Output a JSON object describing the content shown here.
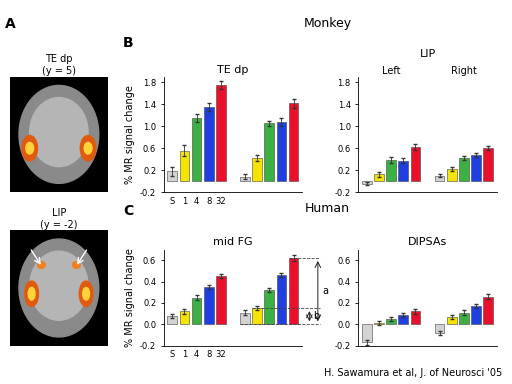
{
  "figure": {
    "panel_labels": [
      "A",
      "B",
      "C"
    ],
    "group_titles": [
      "Monkey",
      "Human"
    ],
    "credit": "H. Sawamura et al, J. of Neurosci '05",
    "images": [
      {
        "title": "TE dp\n(y = 5)"
      },
      {
        "title": "LIP\n(y = -2)"
      }
    ]
  },
  "chart_data": [
    {
      "type": "bar",
      "title": "TE dp",
      "y_label": "% MR signal change",
      "categories": [
        "S",
        "1",
        "4",
        "8",
        "32",
        null,
        null,
        null,
        null,
        null,
        null
      ],
      "values": [
        0.18,
        0.55,
        1.15,
        1.35,
        1.75,
        null,
        0.08,
        0.42,
        1.05,
        1.07,
        1.42
      ],
      "errors": [
        0.08,
        0.1,
        0.07,
        0.07,
        0.07,
        null,
        0.05,
        0.06,
        0.05,
        0.07,
        0.08
      ],
      "colors": [
        "#d3d3d3",
        "#f5e400",
        "#3cb043",
        "#1f3fe0",
        "#e8102a",
        null,
        "#d3d3d3",
        "#f5e400",
        "#3cb043",
        "#1f3fe0",
        "#e8102a"
      ],
      "ylim": [
        -0.2,
        1.9
      ],
      "yticks": [
        -0.2,
        0.2,
        0.6,
        {
          "value": 1.0,
          "label": "1.0"
        },
        1.4,
        1.8
      ]
    },
    {
      "type": "bar",
      "title": "LIP",
      "group_labels": [
        "Left",
        "Right"
      ],
      "categories": [
        null,
        null,
        null,
        null,
        null,
        null,
        null,
        null,
        null,
        null,
        null
      ],
      "values": [
        -0.05,
        0.12,
        0.38,
        0.37,
        0.62,
        null,
        0.1,
        0.22,
        0.42,
        0.48,
        0.6
      ],
      "errors": [
        0.03,
        0.04,
        0.05,
        0.05,
        0.05,
        null,
        0.03,
        0.03,
        0.04,
        0.04,
        0.04
      ],
      "colors": [
        "#d3d3d3",
        "#f5e400",
        "#3cb043",
        "#1f3fe0",
        "#e8102a",
        null,
        "#d3d3d3",
        "#f5e400",
        "#3cb043",
        "#1f3fe0",
        "#e8102a"
      ],
      "ylim": [
        -0.2,
        1.9
      ],
      "yticks": [
        -0.2,
        0.2,
        0.6,
        {
          "value": 1.0,
          "label": "1.0"
        },
        1.4,
        1.8
      ],
      "tick_labels": "y"
    },
    {
      "type": "bar",
      "title": "mid FG",
      "y_label": "% MR signal change",
      "categories": [
        "S",
        "1",
        "4",
        "8",
        "32",
        null,
        null,
        null,
        null,
        null,
        null
      ],
      "values": [
        0.08,
        0.12,
        0.25,
        0.35,
        0.45,
        null,
        0.11,
        0.15,
        0.32,
        0.46,
        0.62
      ],
      "errors": [
        0.02,
        0.02,
        0.02,
        0.02,
        0.02,
        null,
        0.02,
        0.02,
        0.02,
        0.02,
        0.03
      ],
      "colors": [
        "#d3d3d3",
        "#f5e400",
        "#3cb043",
        "#1f3fe0",
        "#e8102a",
        null,
        "#d3d3d3",
        "#f5e400",
        "#3cb043",
        "#1f3fe0",
        "#e8102a"
      ],
      "ylim": [
        -0.2,
        0.7
      ],
      "yticks": [
        -0.2,
        {
          "value": 0.0,
          "label": "0.0"
        },
        0.2,
        0.4,
        0.6
      ],
      "annotations": [
        {
          "text": "a"
        },
        {
          "text": "b"
        }
      ]
    },
    {
      "type": "bar",
      "title": "DIPSAs",
      "categories": [
        null,
        null,
        null,
        null,
        null,
        null,
        null,
        null,
        null,
        null,
        null
      ],
      "values": [
        -0.17,
        0.01,
        0.05,
        0.09,
        0.12,
        null,
        -0.08,
        0.07,
        0.11,
        0.17,
        0.26
      ],
      "errors": [
        0.02,
        0.02,
        0.02,
        0.02,
        0.02,
        null,
        0.02,
        0.02,
        0.02,
        0.02,
        0.02
      ],
      "colors": [
        "#d3d3d3",
        "#f5e400",
        "#3cb043",
        "#1f3fe0",
        "#e8102a",
        null,
        "#d3d3d3",
        "#f5e400",
        "#3cb043",
        "#1f3fe0",
        "#e8102a"
      ],
      "ylim": [
        -0.2,
        0.7
      ],
      "yticks": [
        -0.2,
        {
          "value": 0.0,
          "label": "0.0"
        },
        0.2,
        0.4,
        0.6
      ],
      "tick_labels": "y"
    }
  ]
}
